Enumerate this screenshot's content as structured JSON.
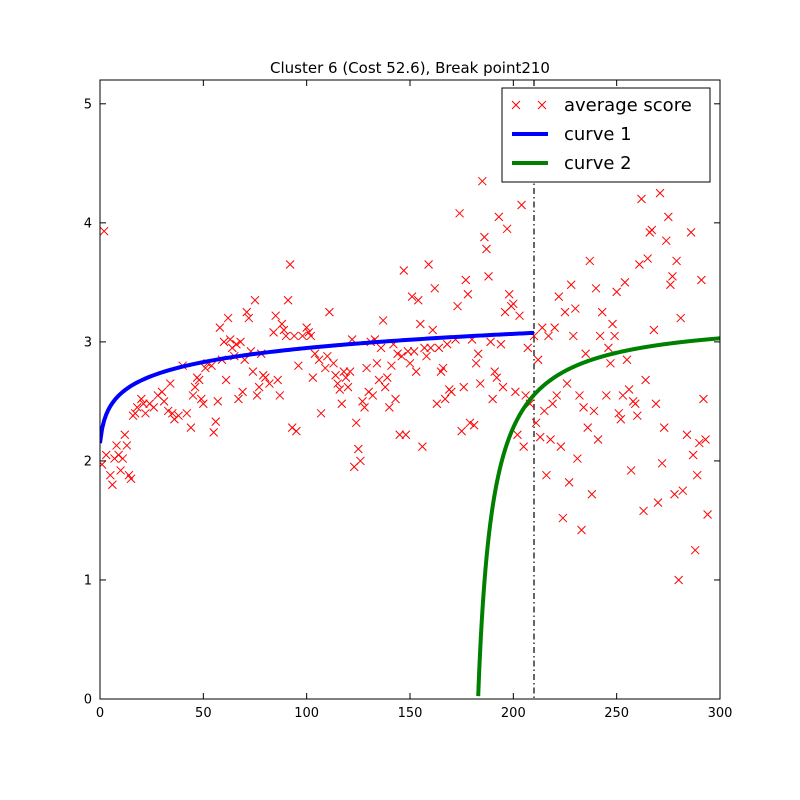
{
  "chart_data": {
    "type": "scatter",
    "title": "Cluster 6 (Cost 52.6), Break point210",
    "xlabel": "",
    "ylabel": "",
    "xlim": [
      0,
      300
    ],
    "ylim": [
      0,
      5.2
    ],
    "xticks": [
      0,
      50,
      100,
      150,
      200,
      250,
      300
    ],
    "yticks": [
      0,
      1,
      2,
      3,
      4,
      5
    ],
    "grid": false,
    "legend_position": "top-right",
    "break_point": 210,
    "series": [
      {
        "name": "average score",
        "kind": "scatter",
        "marker": "x",
        "color": "#ff0000",
        "points": [
          [
            1,
            1.97
          ],
          [
            2,
            3.93
          ],
          [
            3,
            2.05
          ],
          [
            5,
            1.88
          ],
          [
            6,
            1.8
          ],
          [
            7,
            2.02
          ],
          [
            8,
            2.13
          ],
          [
            9,
            2.05
          ],
          [
            10,
            1.92
          ],
          [
            11,
            2.02
          ],
          [
            12,
            2.22
          ],
          [
            13,
            2.13
          ],
          [
            14,
            1.88
          ],
          [
            15,
            1.85
          ],
          [
            16,
            2.38
          ],
          [
            17,
            2.4
          ],
          [
            18,
            2.45
          ],
          [
            20,
            2.52
          ],
          [
            21,
            2.48
          ],
          [
            22,
            2.4
          ],
          [
            24,
            2.48
          ],
          [
            26,
            2.45
          ],
          [
            28,
            2.55
          ],
          [
            30,
            2.58
          ],
          [
            31,
            2.5
          ],
          [
            33,
            2.42
          ],
          [
            34,
            2.65
          ],
          [
            35,
            2.4
          ],
          [
            36,
            2.35
          ],
          [
            38,
            2.38
          ],
          [
            40,
            2.8
          ],
          [
            42,
            2.4
          ],
          [
            44,
            2.28
          ],
          [
            45,
            2.55
          ],
          [
            46,
            2.62
          ],
          [
            47,
            2.7
          ],
          [
            48,
            2.68
          ],
          [
            49,
            2.52
          ],
          [
            50,
            2.48
          ],
          [
            51,
            2.78
          ],
          [
            52,
            2.82
          ],
          [
            54,
            2.8
          ],
          [
            55,
            2.24
          ],
          [
            56,
            2.33
          ],
          [
            57,
            2.5
          ],
          [
            58,
            3.12
          ],
          [
            59,
            2.85
          ],
          [
            60,
            3.0
          ],
          [
            61,
            2.68
          ],
          [
            62,
            3.2
          ],
          [
            63,
            3.02
          ],
          [
            64,
            2.95
          ],
          [
            65,
            2.88
          ],
          [
            66,
            2.98
          ],
          [
            67,
            2.52
          ],
          [
            68,
            3.0
          ],
          [
            69,
            2.58
          ],
          [
            70,
            2.85
          ],
          [
            71,
            3.25
          ],
          [
            72,
            3.2
          ],
          [
            73,
            2.92
          ],
          [
            74,
            2.75
          ],
          [
            75,
            3.35
          ],
          [
            76,
            2.55
          ],
          [
            77,
            2.62
          ],
          [
            78,
            2.9
          ],
          [
            79,
            2.72
          ],
          [
            80,
            2.7
          ],
          [
            82,
            2.65
          ],
          [
            84,
            3.08
          ],
          [
            85,
            3.22
          ],
          [
            86,
            2.68
          ],
          [
            87,
            2.55
          ],
          [
            88,
            3.15
          ],
          [
            89,
            3.1
          ],
          [
            90,
            3.05
          ],
          [
            91,
            3.35
          ],
          [
            92,
            3.65
          ],
          [
            93,
            2.28
          ],
          [
            94,
            3.05
          ],
          [
            95,
            2.25
          ],
          [
            96,
            2.8
          ],
          [
            98,
            3.05
          ],
          [
            100,
            3.12
          ],
          [
            101,
            3.08
          ],
          [
            102,
            3.05
          ],
          [
            103,
            2.7
          ],
          [
            104,
            2.9
          ],
          [
            106,
            2.85
          ],
          [
            107,
            2.4
          ],
          [
            109,
            2.78
          ],
          [
            110,
            2.88
          ],
          [
            111,
            3.25
          ],
          [
            113,
            2.82
          ],
          [
            114,
            2.72
          ],
          [
            115,
            2.65
          ],
          [
            116,
            2.6
          ],
          [
            117,
            2.48
          ],
          [
            118,
            2.75
          ],
          [
            119,
            2.7
          ],
          [
            120,
            2.62
          ],
          [
            121,
            2.75
          ],
          [
            122,
            3.02
          ],
          [
            123,
            1.95
          ],
          [
            124,
            2.32
          ],
          [
            125,
            2.1
          ],
          [
            126,
            2.0
          ],
          [
            127,
            2.5
          ],
          [
            128,
            2.45
          ],
          [
            129,
            2.78
          ],
          [
            130,
            2.58
          ],
          [
            131,
            3.0
          ],
          [
            132,
            2.55
          ],
          [
            133,
            3.02
          ],
          [
            134,
            2.82
          ],
          [
            135,
            2.68
          ],
          [
            136,
            2.95
          ],
          [
            137,
            3.18
          ],
          [
            138,
            2.62
          ],
          [
            139,
            2.7
          ],
          [
            140,
            2.45
          ],
          [
            141,
            2.8
          ],
          [
            142,
            2.98
          ],
          [
            143,
            2.52
          ],
          [
            144,
            2.9
          ],
          [
            145,
            2.22
          ],
          [
            146,
            2.88
          ],
          [
            147,
            3.6
          ],
          [
            148,
            2.22
          ],
          [
            149,
            2.92
          ],
          [
            150,
            2.82
          ],
          [
            151,
            3.38
          ],
          [
            152,
            2.92
          ],
          [
            153,
            2.75
          ],
          [
            154,
            3.35
          ],
          [
            155,
            3.15
          ],
          [
            156,
            2.12
          ],
          [
            157,
            2.95
          ],
          [
            158,
            2.88
          ],
          [
            159,
            3.65
          ],
          [
            160,
            2.95
          ],
          [
            161,
            3.1
          ],
          [
            162,
            3.45
          ],
          [
            163,
            2.48
          ],
          [
            164,
            2.95
          ],
          [
            165,
            2.75
          ],
          [
            166,
            2.78
          ],
          [
            167,
            2.52
          ],
          [
            168,
            2.98
          ],
          [
            169,
            2.6
          ],
          [
            170,
            2.58
          ],
          [
            172,
            3.02
          ],
          [
            173,
            3.3
          ],
          [
            174,
            4.08
          ],
          [
            175,
            2.25
          ],
          [
            176,
            2.62
          ],
          [
            177,
            3.52
          ],
          [
            178,
            3.4
          ],
          [
            179,
            2.32
          ],
          [
            180,
            3.02
          ],
          [
            181,
            2.3
          ],
          [
            182,
            2.82
          ],
          [
            183,
            2.9
          ],
          [
            184,
            2.65
          ],
          [
            185,
            4.35
          ],
          [
            186,
            3.88
          ],
          [
            187,
            3.78
          ],
          [
            188,
            3.55
          ],
          [
            189,
            3.0
          ],
          [
            190,
            2.52
          ],
          [
            191,
            2.75
          ],
          [
            192,
            2.7
          ],
          [
            193,
            4.05
          ],
          [
            194,
            2.98
          ],
          [
            195,
            2.62
          ],
          [
            196,
            3.25
          ],
          [
            197,
            3.95
          ],
          [
            198,
            3.4
          ],
          [
            199,
            3.3
          ],
          [
            200,
            3.32
          ],
          [
            201,
            2.58
          ],
          [
            202,
            2.22
          ],
          [
            203,
            3.22
          ],
          [
            204,
            4.15
          ],
          [
            205,
            2.12
          ],
          [
            206,
            2.55
          ],
          [
            207,
            2.95
          ],
          [
            208,
            2.48
          ],
          [
            210,
            3.05
          ],
          [
            211,
            2.32
          ],
          [
            212,
            2.85
          ],
          [
            213,
            2.2
          ],
          [
            214,
            3.12
          ],
          [
            215,
            2.42
          ],
          [
            216,
            1.88
          ],
          [
            217,
            3.05
          ],
          [
            218,
            2.18
          ],
          [
            219,
            2.48
          ],
          [
            220,
            3.12
          ],
          [
            221,
            2.55
          ],
          [
            222,
            3.38
          ],
          [
            223,
            2.12
          ],
          [
            224,
            1.52
          ],
          [
            225,
            3.25
          ],
          [
            226,
            2.65
          ],
          [
            227,
            1.82
          ],
          [
            228,
            3.48
          ],
          [
            229,
            3.05
          ],
          [
            230,
            3.28
          ],
          [
            231,
            2.02
          ],
          [
            232,
            2.55
          ],
          [
            233,
            1.42
          ],
          [
            234,
            2.45
          ],
          [
            235,
            2.9
          ],
          [
            236,
            2.28
          ],
          [
            237,
            3.68
          ],
          [
            238,
            1.72
          ],
          [
            239,
            2.42
          ],
          [
            240,
            3.45
          ],
          [
            241,
            2.18
          ],
          [
            242,
            3.05
          ],
          [
            243,
            3.25
          ],
          [
            245,
            2.55
          ],
          [
            246,
            2.95
          ],
          [
            247,
            2.82
          ],
          [
            248,
            3.15
          ],
          [
            249,
            3.05
          ],
          [
            250,
            3.42
          ],
          [
            251,
            2.4
          ],
          [
            252,
            2.35
          ],
          [
            253,
            2.55
          ],
          [
            254,
            3.5
          ],
          [
            255,
            2.85
          ],
          [
            256,
            2.6
          ],
          [
            257,
            1.92
          ],
          [
            258,
            2.5
          ],
          [
            259,
            2.48
          ],
          [
            260,
            2.38
          ],
          [
            261,
            3.65
          ],
          [
            262,
            4.2
          ],
          [
            263,
            1.58
          ],
          [
            264,
            2.68
          ],
          [
            265,
            3.7
          ],
          [
            266,
            3.92
          ],
          [
            267,
            3.94
          ],
          [
            268,
            3.1
          ],
          [
            269,
            2.48
          ],
          [
            270,
            1.65
          ],
          [
            271,
            4.25
          ],
          [
            272,
            1.98
          ],
          [
            273,
            2.28
          ],
          [
            274,
            3.85
          ],
          [
            275,
            4.05
          ],
          [
            276,
            3.48
          ],
          [
            277,
            3.55
          ],
          [
            278,
            1.72
          ],
          [
            279,
            3.68
          ],
          [
            280,
            1.0
          ],
          [
            281,
            3.2
          ],
          [
            282,
            1.75
          ],
          [
            284,
            2.22
          ],
          [
            286,
            3.92
          ],
          [
            287,
            2.05
          ],
          [
            288,
            1.25
          ],
          [
            289,
            1.88
          ],
          [
            290,
            2.15
          ],
          [
            291,
            3.52
          ],
          [
            292,
            2.52
          ],
          [
            293,
            2.18
          ],
          [
            294,
            1.55
          ]
        ]
      },
      {
        "name": "curve 1",
        "kind": "line",
        "color": "#0000ff",
        "x_range": [
          0,
          210
        ],
        "model": "logarithmic",
        "formula": "2.15 + 0.173 * ln(1 + x)",
        "a": 2.15,
        "b": 0.173
      },
      {
        "name": "curve 2",
        "kind": "line",
        "color": "#008000",
        "x_range": [
          183,
          300
        ],
        "model": "hyperbolic",
        "formula": "3.21 - 22.3 / (x - 176)",
        "a": 3.21,
        "b": 22.3,
        "c": 176
      }
    ]
  }
}
